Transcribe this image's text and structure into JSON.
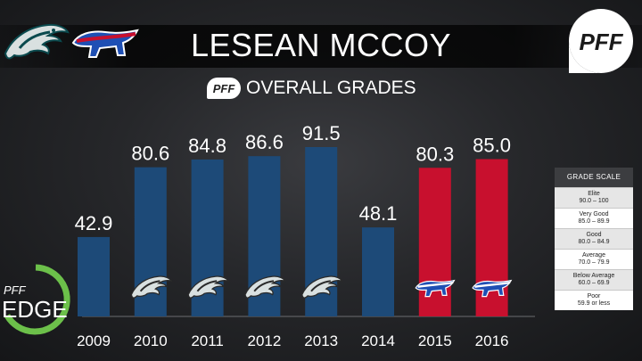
{
  "header": {
    "title": "LESEAN MCCOY",
    "subtitle": "OVERALL GRADES",
    "brand_logo_text": "PFF",
    "edge_logo_top": "PFF",
    "edge_logo_bottom": "EDGE"
  },
  "grade_scale": {
    "title": "GRADE SCALE",
    "rows": [
      {
        "label": "Elite",
        "range": "90.0 – 100"
      },
      {
        "label": "Very Good",
        "range": "85.0 – 89.9"
      },
      {
        "label": "Good",
        "range": "80.0 – 84.9"
      },
      {
        "label": "Average",
        "range": "70.0 – 79.9"
      },
      {
        "label": "Below Average",
        "range": "60.0 – 69.9"
      },
      {
        "label": "Poor",
        "range": "59.9 or less"
      }
    ]
  },
  "colors": {
    "eagles_bar": "#1d4a78",
    "bills_bar": "#c8102e",
    "bills_blue": "#1e4fb4",
    "eagles_green": "#0b4a4e"
  },
  "chart_data": {
    "type": "bar",
    "categories": [
      "2009",
      "2010",
      "2011",
      "2012",
      "2013",
      "2014",
      "2015",
      "2016"
    ],
    "values": [
      42.9,
      80.6,
      84.8,
      86.6,
      91.5,
      48.1,
      80.3,
      85.0
    ],
    "value_labels": [
      "42.9",
      "80.6",
      "84.8",
      "86.6",
      "91.5",
      "48.1",
      "80.3",
      "85.0"
    ],
    "teams": [
      "Eagles",
      "Eagles",
      "Eagles",
      "Eagles",
      "Eagles",
      "Eagles",
      "Bills",
      "Bills"
    ],
    "bar_icons": [
      "",
      "eagles-logo-icon",
      "eagles-logo-icon",
      "eagles-logo-icon",
      "eagles-logo-icon",
      "",
      "bills-logo-icon",
      "bills-logo-icon"
    ],
    "title": "OVERALL GRADES",
    "xlabel": "",
    "ylabel": "",
    "grid": false
  }
}
